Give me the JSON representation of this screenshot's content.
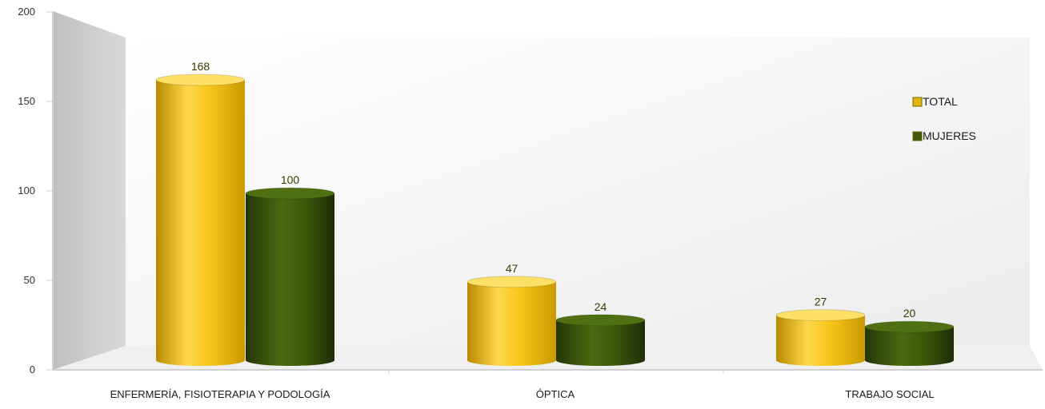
{
  "chart_data": {
    "type": "bar",
    "title": "",
    "xlabel": "",
    "ylabel": "",
    "ylim": [
      0,
      200
    ],
    "yticks": [
      "0",
      "50",
      "100",
      "150",
      "200"
    ],
    "categories": [
      "ENFERMERÍA, FISIOTERAPIA  Y PODOLOGÍA",
      "ÓPTICA",
      "TRABAJO SOCIAL"
    ],
    "series": [
      {
        "name": "TOTAL",
        "values": [
          168,
          47,
          27
        ],
        "color": "#F5C518"
      },
      {
        "name": "MUJERES",
        "values": [
          100,
          24,
          20
        ],
        "color": "#3F5A0A"
      }
    ],
    "data_labels": [
      [
        "168",
        "47",
        "27"
      ],
      [
        "100",
        "24",
        "20"
      ]
    ],
    "legend_position": "right",
    "grid": false,
    "style": "3d-cylinder"
  }
}
